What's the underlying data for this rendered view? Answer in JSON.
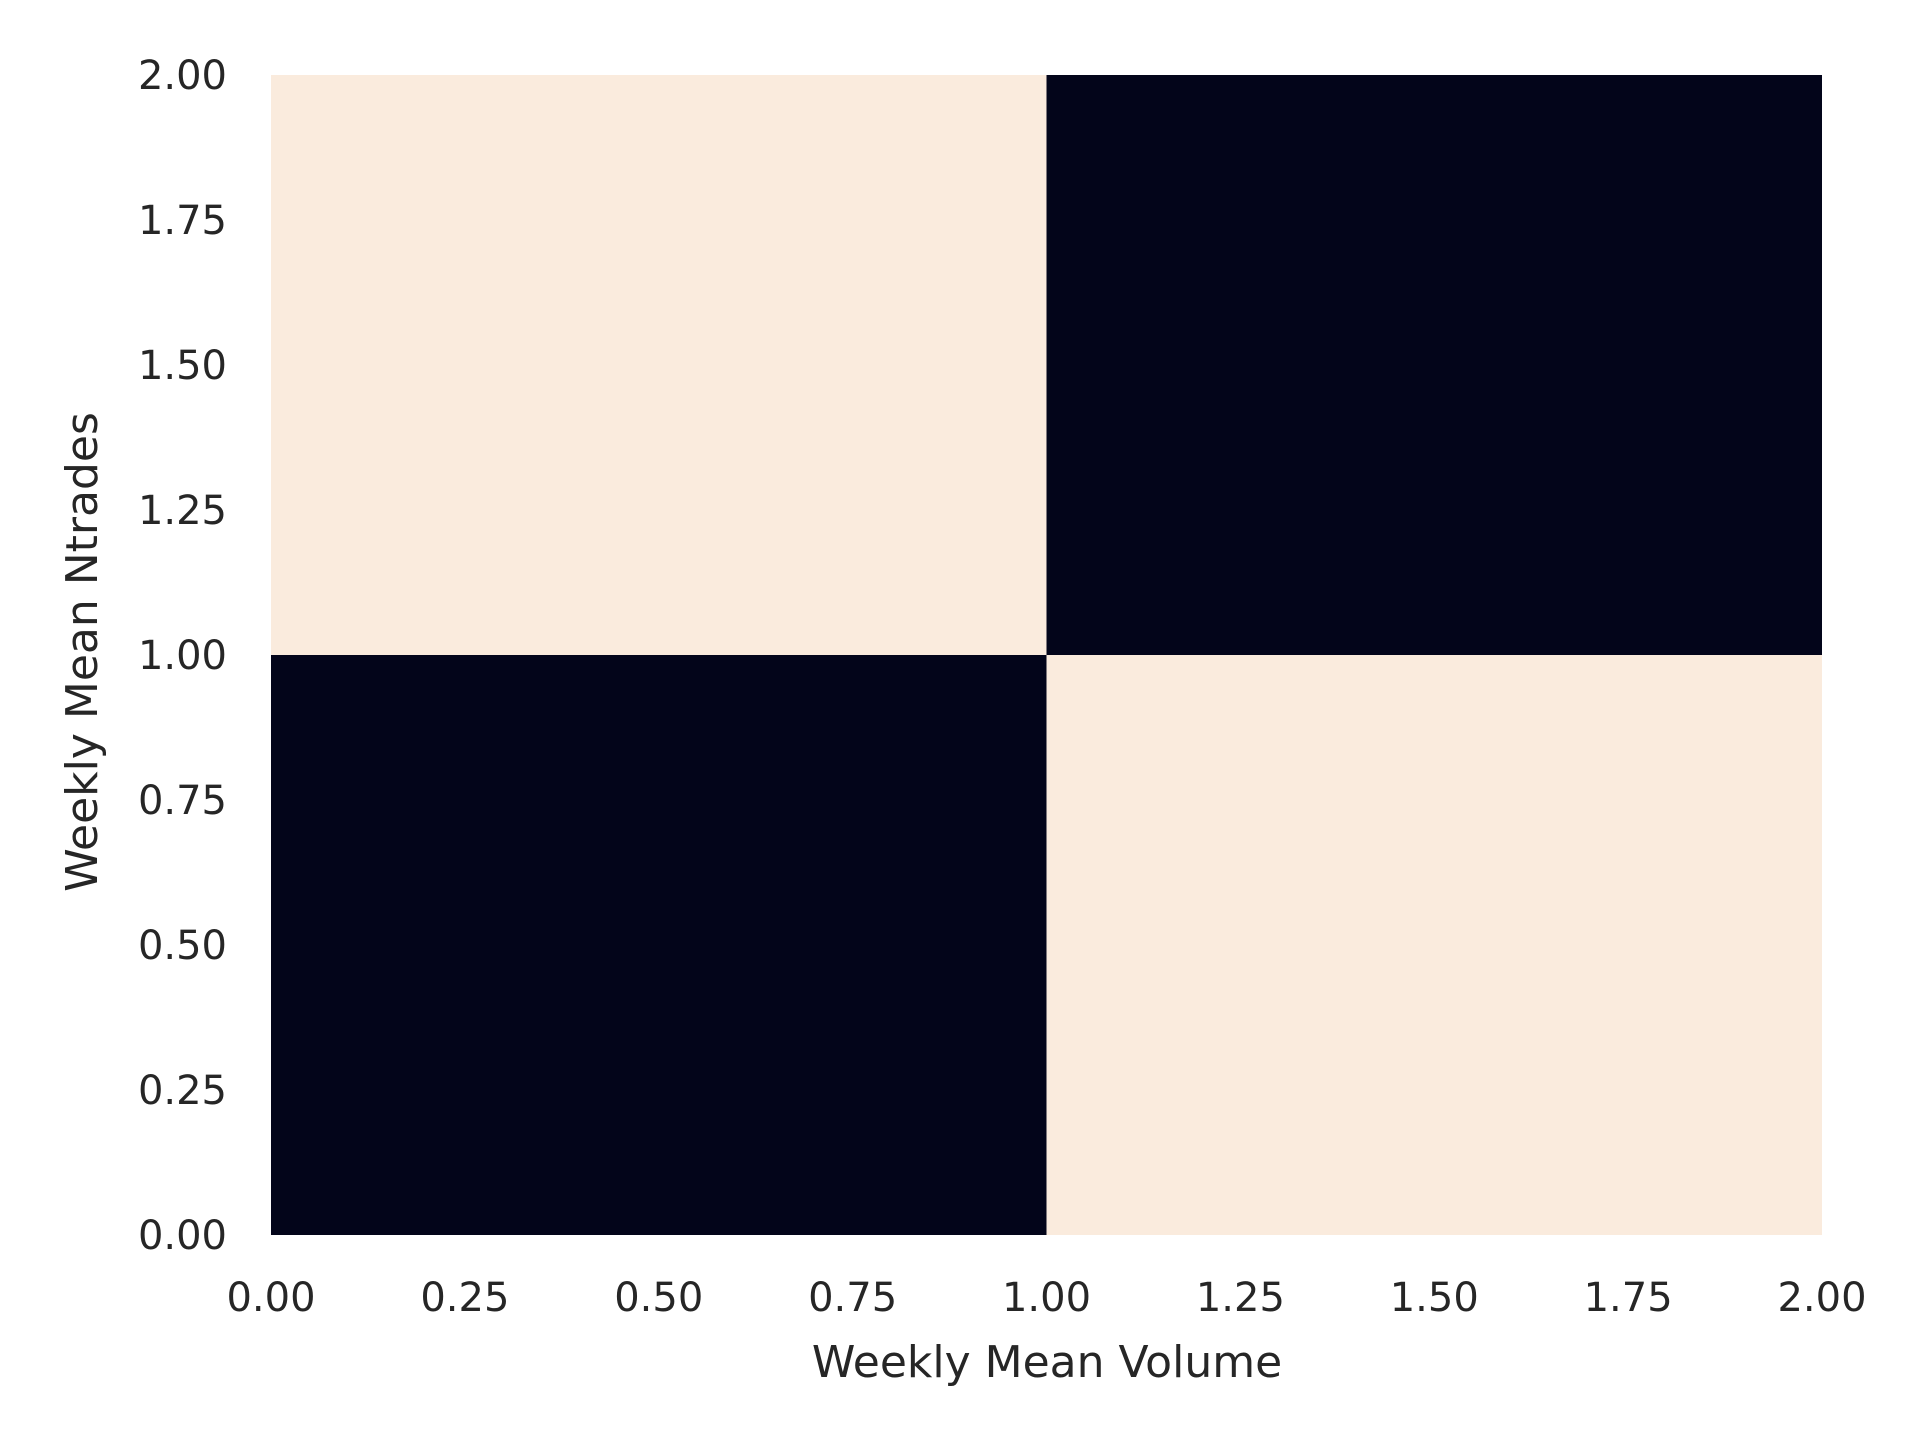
{
  "chart_data": {
    "type": "heatmap",
    "xlabel": "Weekly Mean Volume",
    "ylabel": "Weekly Mean Ntrades",
    "xlim": [
      0,
      2
    ],
    "ylim": [
      0,
      2
    ],
    "x_ticks": [
      "0.00",
      "0.25",
      "0.50",
      "0.75",
      "1.00",
      "1.25",
      "1.50",
      "1.75",
      "2.00"
    ],
    "y_ticks": [
      "0.00",
      "0.25",
      "0.50",
      "0.75",
      "1.00",
      "1.25",
      "1.50",
      "1.75",
      "2.00"
    ],
    "x_edges": [
      0,
      1,
      2
    ],
    "y_edges": [
      0,
      1,
      2
    ],
    "cells": [
      {
        "x0": 0,
        "x1": 1,
        "y0": 0,
        "y1": 1,
        "value": 1
      },
      {
        "x0": 1,
        "x1": 2,
        "y0": 0,
        "y1": 1,
        "value": 0
      },
      {
        "x0": 0,
        "x1": 1,
        "y0": 1,
        "y1": 2,
        "value": 0
      },
      {
        "x0": 1,
        "x1": 2,
        "y0": 1,
        "y1": 2,
        "value": 1
      }
    ],
    "colors": {
      "low": "#03051a",
      "high": "#faebdd"
    },
    "grid": false,
    "legend": "none"
  }
}
